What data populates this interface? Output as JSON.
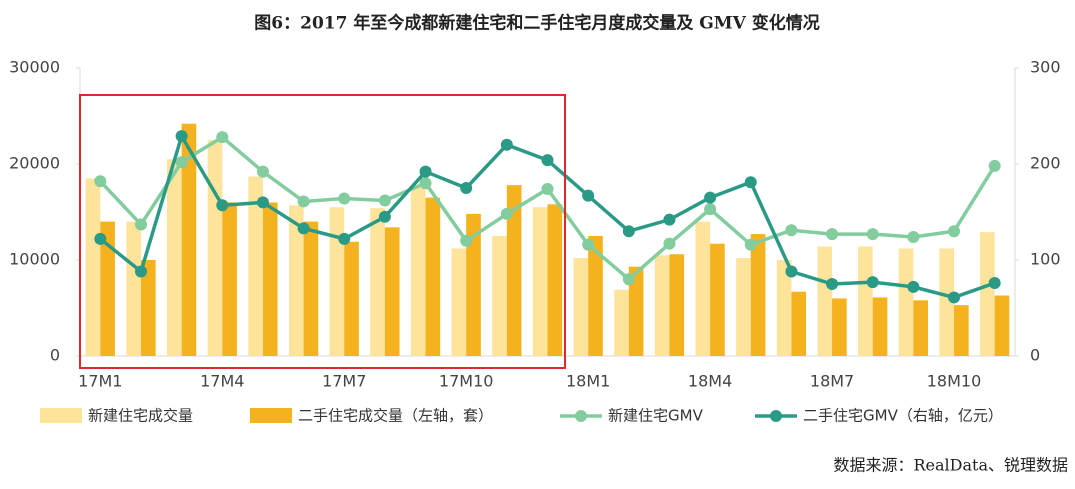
{
  "chart_data": {
    "type": "combo",
    "title": "图6：2017 年至今成都新建住宅和二手住宅月度成交量及 GMV 变化情况",
    "source": "数据来源：RealData、锐理数据",
    "categories": [
      "17M1",
      null,
      null,
      "17M4",
      null,
      null,
      "17M7",
      null,
      null,
      "17M10",
      null,
      null,
      "18M1",
      null,
      null,
      "18M4",
      null,
      null,
      "18M7",
      null,
      null,
      "18M10",
      null
    ],
    "ylim": [
      0,
      30000
    ],
    "yticks": [
      0,
      10000,
      20000,
      30000
    ],
    "y2lim": [
      0,
      300
    ],
    "y2ticks": [
      0,
      100,
      200,
      300
    ],
    "grid": false,
    "series": [
      {
        "name": "新建住宅成交量",
        "type": "bar",
        "color": "#fde49a",
        "values": [
          18500,
          14000,
          20500,
          22500,
          18700,
          15700,
          15500,
          15400,
          17800,
          11200,
          12500,
          15500,
          10200,
          6900,
          10500,
          14000,
          10200,
          10000,
          11400,
          11400,
          11200,
          11200,
          12900
        ]
      },
      {
        "name": "二手住宅成交量（左轴，套）",
        "type": "bar",
        "color": "#f5b21f",
        "values": [
          14000,
          10000,
          24200,
          16000,
          16000,
          14000,
          11900,
          13400,
          16500,
          14800,
          17800,
          15800,
          12500,
          9300,
          10600,
          11700,
          12700,
          6700,
          6000,
          6100,
          5800,
          5300,
          6300
        ]
      },
      {
        "name": "新建住宅GMV",
        "type": "line",
        "axis": "y2",
        "color": "#82cc9d",
        "values": [
          182,
          137,
          202,
          228,
          192,
          161,
          164,
          162,
          180,
          120,
          148,
          174,
          116,
          80,
          117,
          153,
          116,
          131,
          127,
          127,
          124,
          130,
          198
        ]
      },
      {
        "name": "二手住宅GMV（右轴，亿元）",
        "type": "line",
        "axis": "y2",
        "color": "#2a9a86",
        "values": [
          122,
          88,
          229,
          157,
          160,
          133,
          122,
          145,
          192,
          175,
          220,
          204,
          167,
          130,
          142,
          165,
          181,
          88,
          75,
          77,
          72,
          61,
          76
        ]
      }
    ]
  }
}
